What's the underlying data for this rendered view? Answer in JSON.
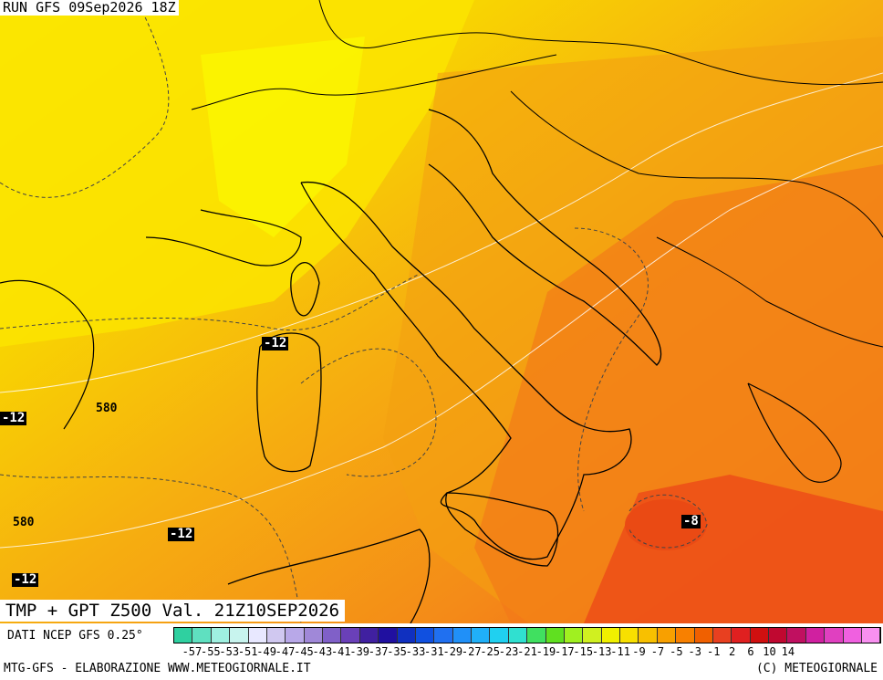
{
  "header": {
    "run": "RUN GFS 09Sep2026 18Z"
  },
  "map": {
    "title": "TMP + GPT Z500 Val. 21Z10SEP2026",
    "temperature_labels": [
      "-12",
      "-12",
      "-12",
      "-12",
      "-8"
    ],
    "geopotential_labels": [
      "580",
      "580"
    ]
  },
  "legend": {
    "values": [
      "-57",
      "-55",
      "-53",
      "-51",
      "-49",
      "-47",
      "-45",
      "-43",
      "-41",
      "-39",
      "-37",
      "-35",
      "-33",
      "-31",
      "-29",
      "-27",
      "-25",
      "-23",
      "-21",
      "-19",
      "-17",
      "-15",
      "-13",
      "-11",
      "-9",
      "-7",
      "-5",
      "-3",
      "-1",
      "2",
      "6",
      "10",
      "14"
    ],
    "colors": [
      "#2fd0a0",
      "#5fe0c0",
      "#9ff0e0",
      "#c8f4ee",
      "#e8e8ff",
      "#d0c8f0",
      "#b8a8e8",
      "#a088d8",
      "#8060c8",
      "#6a40b8",
      "#4020a0",
      "#2010a0",
      "#1030c0",
      "#1050e0",
      "#2070f0",
      "#2090f8",
      "#20b0f8",
      "#20d0f0",
      "#30e0d0",
      "#40e060",
      "#60e020",
      "#a0f020",
      "#d0f020",
      "#f0f000",
      "#f8e000",
      "#f8c000",
      "#f8a000",
      "#f88000",
      "#f06000",
      "#e84020",
      "#e02020",
      "#d01010",
      "#c00830",
      "#c01060",
      "#d020a0",
      "#e040c0",
      "#f060e0",
      "#f890f0"
    ]
  },
  "footer": {
    "source": "DATI NCEP GFS 0.25°",
    "left": "MTG-GFS - ELABORAZIONE WWW.METEOGIORNALE.IT",
    "right": "(C) METEOGIORNALE"
  }
}
